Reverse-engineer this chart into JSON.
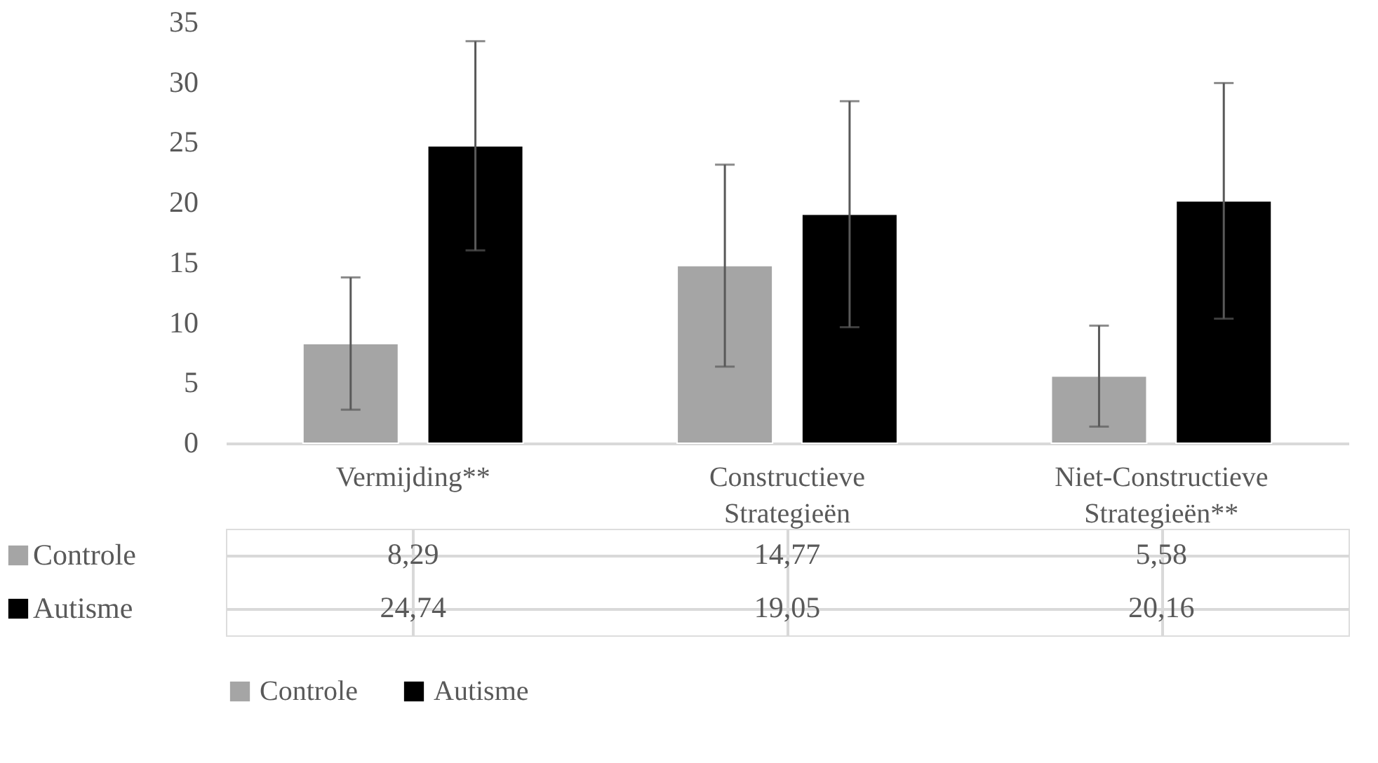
{
  "chart_data": {
    "type": "bar",
    "categories": [
      "Vermijding**",
      "Constructieve Strategieën",
      "Niet-Constructieve Strategieën**"
    ],
    "series": [
      {
        "name": "Controle",
        "color": "#a5a5a5",
        "values": [
          8.29,
          14.77,
          5.58
        ],
        "errors": [
          5.5,
          8.4,
          4.2
        ],
        "value_labels": [
          "8,29",
          "14,77",
          "5,58"
        ]
      },
      {
        "name": "Autisme",
        "color": "#000000",
        "values": [
          24.74,
          19.05,
          20.16
        ],
        "errors": [
          8.7,
          9.4,
          9.8
        ],
        "value_labels": [
          "24,74",
          "19,05",
          "20,16"
        ]
      }
    ],
    "ylim": [
      0,
      35
    ],
    "yticks": [
      0,
      5,
      10,
      15,
      20,
      25,
      30,
      35
    ],
    "grid": false,
    "legend": "bottom"
  }
}
